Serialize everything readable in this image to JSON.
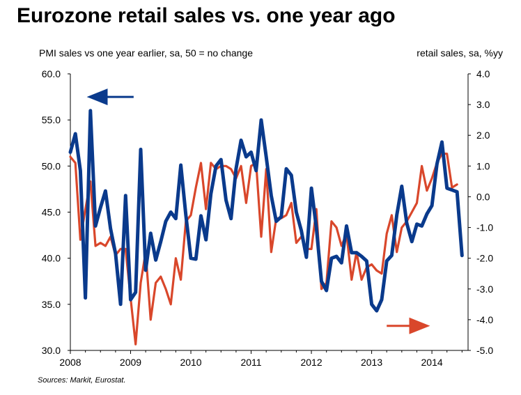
{
  "title": "Eurozone retail sales vs. one year ago",
  "source": "Sources: Markit, Eurostat.",
  "chart_data": {
    "type": "line",
    "left_axis": {
      "label": "PMI sales vs one year earlier, sa, 50 = no change",
      "range": [
        30,
        60
      ],
      "ticks": [
        "60.0",
        "55.0",
        "50.0",
        "45.0",
        "40.0",
        "35.0",
        "30.0"
      ],
      "tick_values": [
        60,
        55,
        50,
        45,
        40,
        35,
        30
      ]
    },
    "right_axis": {
      "label": "retail sales, sa, %yy",
      "range": [
        -5,
        4
      ],
      "ticks": [
        "4.0",
        "3.0",
        "2.0",
        "1.0",
        "0.0",
        "-1.0",
        "-2.0",
        "-3.0",
        "-4.0",
        "-5.0"
      ],
      "tick_values": [
        4,
        3,
        2,
        1,
        0,
        -1,
        -2,
        -3,
        -4,
        -5
      ]
    },
    "x_axis": {
      "range": [
        2008,
        2014.6
      ],
      "ticks": [
        "2008",
        "2009",
        "2010",
        "2011",
        "2012",
        "2013",
        "2014"
      ],
      "tick_values": [
        2008,
        2009,
        2010,
        2011,
        2012,
        2013,
        2014
      ]
    },
    "series": [
      {
        "name": "PMI sales vs one year earlier",
        "axis": "left",
        "color": "#0a3a8c",
        "x": [
          2008.0,
          2008.083,
          2008.167,
          2008.25,
          2008.333,
          2008.417,
          2008.5,
          2008.583,
          2008.667,
          2008.75,
          2008.833,
          2008.917,
          2009.0,
          2009.083,
          2009.167,
          2009.25,
          2009.333,
          2009.417,
          2009.5,
          2009.583,
          2009.667,
          2009.75,
          2009.833,
          2009.917,
          2010.0,
          2010.083,
          2010.167,
          2010.25,
          2010.333,
          2010.417,
          2010.5,
          2010.583,
          2010.667,
          2010.75,
          2010.833,
          2010.917,
          2011.0,
          2011.083,
          2011.167,
          2011.25,
          2011.333,
          2011.417,
          2011.5,
          2011.583,
          2011.667,
          2011.75,
          2011.833,
          2011.917,
          2012.0,
          2012.083,
          2012.167,
          2012.25,
          2012.333,
          2012.417,
          2012.5,
          2012.583,
          2012.667,
          2012.75,
          2012.833,
          2012.917,
          2013.0,
          2013.083,
          2013.167,
          2013.25,
          2013.333,
          2013.417,
          2013.5,
          2013.583,
          2013.667,
          2013.75,
          2013.833,
          2013.917,
          2014.0,
          2014.083,
          2014.167,
          2014.25,
          2014.333,
          2014.417,
          2014.5
        ],
        "values": [
          51.5,
          53.5,
          49.5,
          35.7,
          56.0,
          43.5,
          45.5,
          47.3,
          43.2,
          40.5,
          35.0,
          46.8,
          35.5,
          36.3,
          51.8,
          38.7,
          42.7,
          39.8,
          41.8,
          44.0,
          45.0,
          44.3,
          50.1,
          44.7,
          40.0,
          39.9,
          44.6,
          42.0,
          47.0,
          50.0,
          50.7,
          46.3,
          44.3,
          49.7,
          52.8,
          51.0,
          51.5,
          49.5,
          55.0,
          51.0,
          46.8,
          44.0,
          44.5,
          49.7,
          49.0,
          45.0,
          43.0,
          40.1,
          47.6,
          43.3,
          37.5,
          36.5,
          40.0,
          40.2,
          39.5,
          43.5,
          40.6,
          40.6,
          40.2,
          39.7,
          35.0,
          34.3,
          35.5,
          39.7,
          40.3,
          44.7,
          47.8,
          43.8,
          41.8,
          43.7,
          43.5,
          44.8,
          45.7,
          50.2,
          52.6,
          47.6,
          47.4,
          47.2,
          40.3
        ]
      },
      {
        "name": "retail sales, sa, %yy",
        "axis": "right",
        "color": "#d9472b",
        "x": [
          2008.0,
          2008.083,
          2008.167,
          2008.25,
          2008.333,
          2008.417,
          2008.5,
          2008.583,
          2008.667,
          2008.75,
          2008.833,
          2008.917,
          2009.0,
          2009.083,
          2009.167,
          2009.25,
          2009.333,
          2009.417,
          2009.5,
          2009.583,
          2009.667,
          2009.75,
          2009.833,
          2009.917,
          2010.0,
          2010.083,
          2010.167,
          2010.25,
          2010.333,
          2010.417,
          2010.5,
          2010.583,
          2010.667,
          2010.75,
          2010.833,
          2010.917,
          2011.0,
          2011.083,
          2011.167,
          2011.25,
          2011.333,
          2011.417,
          2011.5,
          2011.583,
          2011.667,
          2011.75,
          2011.833,
          2011.917,
          2012.0,
          2012.083,
          2012.167,
          2012.25,
          2012.333,
          2012.417,
          2012.5,
          2012.583,
          2012.667,
          2012.75,
          2012.833,
          2012.917,
          2013.0,
          2013.083,
          2013.167,
          2013.25,
          2013.333,
          2013.417,
          2013.5,
          2013.583,
          2013.667,
          2013.75,
          2013.833,
          2013.917,
          2014.0,
          2014.083,
          2014.167,
          2014.25,
          2014.333,
          2014.417
        ],
        "values": [
          1.3,
          1.1,
          -1.4,
          -0.4,
          0.5,
          -1.6,
          -1.5,
          -1.6,
          -1.3,
          -1.9,
          -1.7,
          -1.7,
          -3.3,
          -4.8,
          -2.8,
          -1.8,
          -4.0,
          -2.8,
          -2.6,
          -3.0,
          -3.5,
          -2.0,
          -2.7,
          -0.8,
          -0.6,
          0.3,
          1.1,
          -0.4,
          1.1,
          0.9,
          1.0,
          1.0,
          0.9,
          0.6,
          1.0,
          -0.2,
          1.0,
          1.1,
          -1.3,
          0.9,
          -1.8,
          -0.7,
          -0.7,
          -0.6,
          -0.2,
          -1.5,
          -1.3,
          -1.7,
          -1.7,
          -0.4,
          -3.0,
          -2.8,
          -0.8,
          -1.0,
          -1.6,
          -1.2,
          -2.7,
          -1.8,
          -2.7,
          -2.3,
          -2.2,
          -2.4,
          -2.5,
          -1.2,
          -0.6,
          -1.8,
          -1.0,
          -0.8,
          -0.5,
          -0.2,
          1.0,
          0.2,
          0.6,
          1.1,
          1.4,
          1.4,
          0.3,
          0.4
        ]
      }
    ],
    "annotations": [
      {
        "text": "left-axis-arrow",
        "points_to": "left",
        "color": "#0a3a8c",
        "data_x": [
          2009.05,
          2008.55
        ],
        "data_y": 57.5,
        "axis": "left"
      },
      {
        "text": "right-axis-arrow",
        "points_to": "right",
        "color": "#d9472b",
        "data_x": [
          2013.25,
          2013.9
        ],
        "data_y": -4.2,
        "axis": "right"
      }
    ],
    "grid": false
  }
}
